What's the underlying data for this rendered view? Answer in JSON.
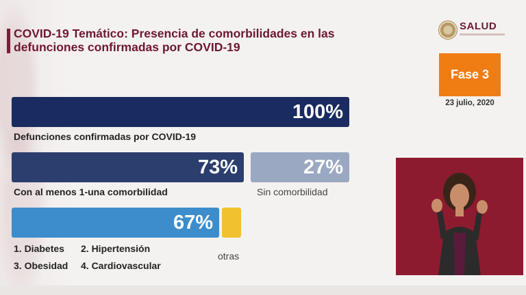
{
  "header": {
    "title_line1": "COVID-19 Temático: Presencia de comorbilidades en las",
    "title_line2": "defunciones confirmadas por COVID-19"
  },
  "brand": {
    "logo_text": "SALUD",
    "phase": "Fase 3",
    "date": "23 julio, 2020"
  },
  "bars": {
    "total": {
      "value": "100%",
      "label": "Defunciones confirmadas por COVID-19"
    },
    "with_comorbidity": {
      "value": "73%",
      "label": "Con al menos 1-una comorbilidad"
    },
    "without_comorbidity": {
      "value": "27%",
      "label": "Sin comorbilidad"
    },
    "top4": {
      "value": "67%"
    },
    "others": {
      "label": "otras"
    }
  },
  "comorbidities": {
    "item1": "1. Diabetes",
    "item2": "2. Hipertensión",
    "item3": "3. Obesidad",
    "item4": "4. Cardiovascular"
  },
  "colors": {
    "accent": "#6e1831",
    "phase": "#ef7d14",
    "bar_total": "#1a2b61",
    "bar_with": "#2c3e6e",
    "bar_without": "#9ba8c2",
    "bar_top4": "#3d8dcc",
    "bar_others": "#f2c12f",
    "video_bg": "#8d1b2f"
  }
}
